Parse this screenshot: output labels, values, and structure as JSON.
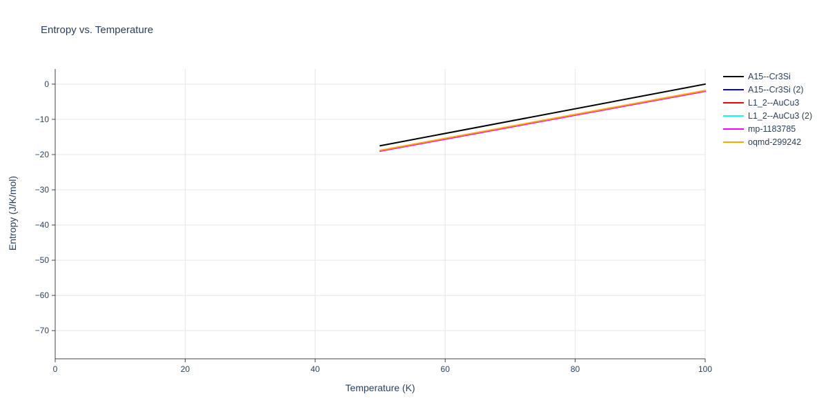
{
  "chart_data": {
    "type": "line",
    "title": "Entropy vs. Temperature",
    "xlabel": "Temperature (K)",
    "ylabel": "Entropy (J/K/mol)",
    "xlim": [
      0,
      100
    ],
    "ylim": [
      -78,
      4.3
    ],
    "xticks": [
      0,
      20,
      40,
      60,
      80,
      100
    ],
    "yticks": [
      0,
      -10,
      -20,
      -30,
      -40,
      -50,
      -60,
      -70
    ],
    "grid": true,
    "legend_position": "top-right-outside",
    "series": [
      {
        "name": "A15--Cr3Si",
        "color": "#000000",
        "x": [
          50,
          100
        ],
        "y": [
          -17.5,
          0.0
        ]
      },
      {
        "name": "A15--Cr3Si (2)",
        "color": "#0000ff",
        "x": [
          50,
          100
        ],
        "y": [
          -19.0,
          -2.0
        ]
      },
      {
        "name": "L1_2--AuCu3",
        "color": "#ff0000",
        "x": [
          50,
          100
        ],
        "y": [
          -19.0,
          -2.0
        ]
      },
      {
        "name": "L1_2--AuCu3 (2)",
        "color": "#00ffff",
        "x": [
          50,
          100
        ],
        "y": [
          -19.0,
          -2.0
        ]
      },
      {
        "name": "mp-1183785",
        "color": "#ff00ff",
        "x": [
          50,
          100
        ],
        "y": [
          -19.0,
          -2.0
        ]
      },
      {
        "name": "oqmd-299242",
        "color": "#ffa500",
        "x": [
          50,
          100
        ],
        "y": [
          -18.8,
          -1.8
        ]
      }
    ]
  }
}
